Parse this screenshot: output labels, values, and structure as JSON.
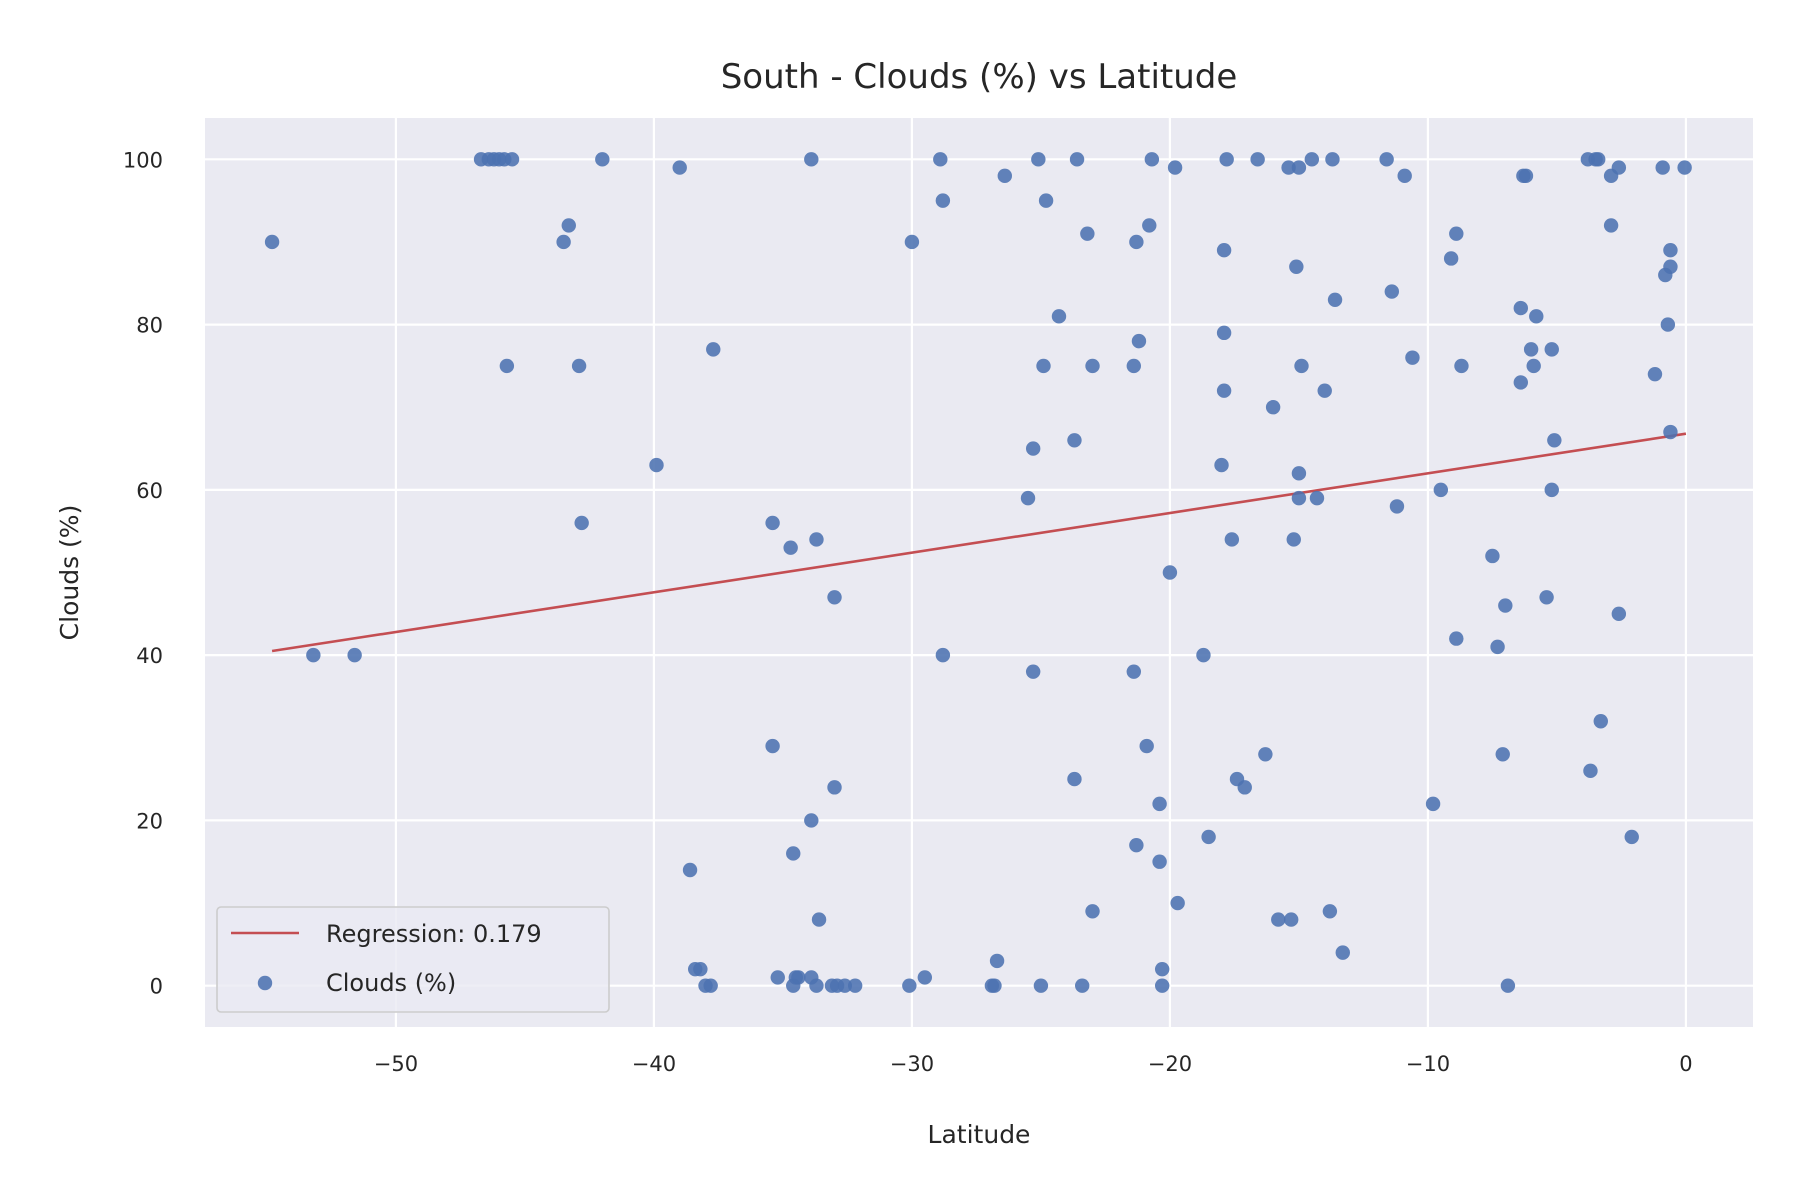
{
  "chart_data": {
    "type": "scatter",
    "title": "South - Clouds (%) vs Latitude",
    "xlabel": "Latitude",
    "ylabel": "Clouds (%)",
    "xlim": [
      -57.4,
      2.6
    ],
    "ylim": [
      -5,
      105
    ],
    "xticks": [
      -50,
      -40,
      -30,
      -20,
      -10,
      0
    ],
    "xtick_labels": [
      "−50",
      "−40",
      "−30",
      "−20",
      "−10",
      "0"
    ],
    "yticks": [
      0,
      20,
      40,
      60,
      80,
      100
    ],
    "ytick_labels": [
      "0",
      "20",
      "40",
      "60",
      "80",
      "100"
    ],
    "grid": true,
    "legend_position": "lower-left",
    "colors": {
      "points": "#4c72b0",
      "line": "#c44e52",
      "background": "#eaeaf2",
      "grid": "#ffffff"
    },
    "series": [
      {
        "name": "Regression: 0.179",
        "kind": "line",
        "x": [
          -54.8,
          0
        ],
        "y": [
          40.5,
          66.8
        ]
      },
      {
        "name": "Clouds (%)",
        "kind": "scatter",
        "points": [
          [
            -54.8,
            90
          ],
          [
            -53.2,
            40
          ],
          [
            -51.6,
            40
          ],
          [
            -46.7,
            100
          ],
          [
            -46.4,
            100
          ],
          [
            -46.2,
            100
          ],
          [
            -46.0,
            100
          ],
          [
            -45.8,
            100
          ],
          [
            -45.5,
            100
          ],
          [
            -45.7,
            75
          ],
          [
            -43.5,
            90
          ],
          [
            -43.3,
            92
          ],
          [
            -42.9,
            75
          ],
          [
            -42.8,
            56
          ],
          [
            -42.0,
            100
          ],
          [
            -39.9,
            63
          ],
          [
            -39.0,
            99
          ],
          [
            -38.6,
            14
          ],
          [
            -38.4,
            2
          ],
          [
            -38.2,
            2
          ],
          [
            -38.0,
            0
          ],
          [
            -37.8,
            0
          ],
          [
            -37.7,
            77
          ],
          [
            -35.4,
            56
          ],
          [
            -35.4,
            29
          ],
          [
            -35.2,
            1
          ],
          [
            -34.7,
            53
          ],
          [
            -34.6,
            0
          ],
          [
            -34.6,
            16
          ],
          [
            -34.5,
            1
          ],
          [
            -34.4,
            1
          ],
          [
            -33.9,
            100
          ],
          [
            -33.9,
            20
          ],
          [
            -33.9,
            1
          ],
          [
            -33.7,
            54
          ],
          [
            -33.6,
            8
          ],
          [
            -33.7,
            0
          ],
          [
            -33.1,
            0
          ],
          [
            -33.0,
            47
          ],
          [
            -33.0,
            24
          ],
          [
            -32.9,
            0
          ],
          [
            -32.6,
            0
          ],
          [
            -32.2,
            0
          ],
          [
            -30.1,
            0
          ],
          [
            -30.0,
            90
          ],
          [
            -29.5,
            1
          ],
          [
            -28.9,
            100
          ],
          [
            -28.8,
            95
          ],
          [
            -28.8,
            40
          ],
          [
            -26.9,
            0
          ],
          [
            -26.8,
            0
          ],
          [
            -26.7,
            3
          ],
          [
            -26.4,
            98
          ],
          [
            -25.5,
            59
          ],
          [
            -25.3,
            38
          ],
          [
            -25.3,
            65
          ],
          [
            -25.1,
            100
          ],
          [
            -25.0,
            0
          ],
          [
            -24.9,
            75
          ],
          [
            -24.8,
            95
          ],
          [
            -24.3,
            81
          ],
          [
            -23.7,
            66
          ],
          [
            -23.7,
            25
          ],
          [
            -23.6,
            100
          ],
          [
            -23.4,
            0
          ],
          [
            -23.2,
            91
          ],
          [
            -23.0,
            75
          ],
          [
            -23.0,
            9
          ],
          [
            -21.4,
            38
          ],
          [
            -21.4,
            75
          ],
          [
            -21.3,
            90
          ],
          [
            -21.3,
            17
          ],
          [
            -21.2,
            78
          ],
          [
            -20.9,
            29
          ],
          [
            -20.8,
            92
          ],
          [
            -20.7,
            100
          ],
          [
            -20.4,
            15
          ],
          [
            -20.4,
            22
          ],
          [
            -20.3,
            2
          ],
          [
            -20.3,
            0
          ],
          [
            -20.0,
            50
          ],
          [
            -19.8,
            99
          ],
          [
            -19.7,
            10
          ],
          [
            -18.7,
            40
          ],
          [
            -18.5,
            18
          ],
          [
            -18.0,
            63
          ],
          [
            -17.9,
            89
          ],
          [
            -17.9,
            79
          ],
          [
            -17.9,
            72
          ],
          [
            -17.8,
            100
          ],
          [
            -17.6,
            54
          ],
          [
            -17.4,
            25
          ],
          [
            -17.1,
            24
          ],
          [
            -16.6,
            100
          ],
          [
            -16.3,
            28
          ],
          [
            -16.0,
            70
          ],
          [
            -15.8,
            8
          ],
          [
            -15.4,
            99
          ],
          [
            -15.3,
            8
          ],
          [
            -15.2,
            54
          ],
          [
            -15.1,
            87
          ],
          [
            -15.0,
            99
          ],
          [
            -15.0,
            62
          ],
          [
            -15.0,
            59
          ],
          [
            -14.9,
            75
          ],
          [
            -14.5,
            100
          ],
          [
            -14.3,
            59
          ],
          [
            -14.0,
            72
          ],
          [
            -13.8,
            9
          ],
          [
            -13.7,
            100
          ],
          [
            -13.6,
            83
          ],
          [
            -13.3,
            4
          ],
          [
            -11.6,
            100
          ],
          [
            -11.4,
            84
          ],
          [
            -11.2,
            58
          ],
          [
            -10.9,
            98
          ],
          [
            -10.6,
            76
          ],
          [
            -9.8,
            22
          ],
          [
            -9.5,
            60
          ],
          [
            -9.1,
            88
          ],
          [
            -8.9,
            91
          ],
          [
            -8.9,
            42
          ],
          [
            -8.7,
            75
          ],
          [
            -7.5,
            52
          ],
          [
            -7.3,
            41
          ],
          [
            -7.1,
            28
          ],
          [
            -7.0,
            46
          ],
          [
            -6.9,
            0
          ],
          [
            -6.4,
            82
          ],
          [
            -6.4,
            73
          ],
          [
            -6.3,
            98
          ],
          [
            -6.2,
            98
          ],
          [
            -6.0,
            77
          ],
          [
            -5.9,
            75
          ],
          [
            -5.8,
            81
          ],
          [
            -5.4,
            47
          ],
          [
            -5.2,
            60
          ],
          [
            -5.2,
            77
          ],
          [
            -5.1,
            66
          ],
          [
            -3.8,
            100
          ],
          [
            -3.7,
            26
          ],
          [
            -3.5,
            100
          ],
          [
            -3.4,
            100
          ],
          [
            -3.3,
            32
          ],
          [
            -2.9,
            98
          ],
          [
            -2.9,
            92
          ],
          [
            -2.6,
            99
          ],
          [
            -2.6,
            45
          ],
          [
            -2.1,
            18
          ],
          [
            -1.2,
            74
          ],
          [
            -0.9,
            99
          ],
          [
            -0.8,
            86
          ],
          [
            -0.7,
            80
          ],
          [
            -0.6,
            89
          ],
          [
            -0.6,
            87
          ],
          [
            -0.6,
            67
          ],
          [
            -0.05,
            99
          ]
        ]
      }
    ]
  }
}
